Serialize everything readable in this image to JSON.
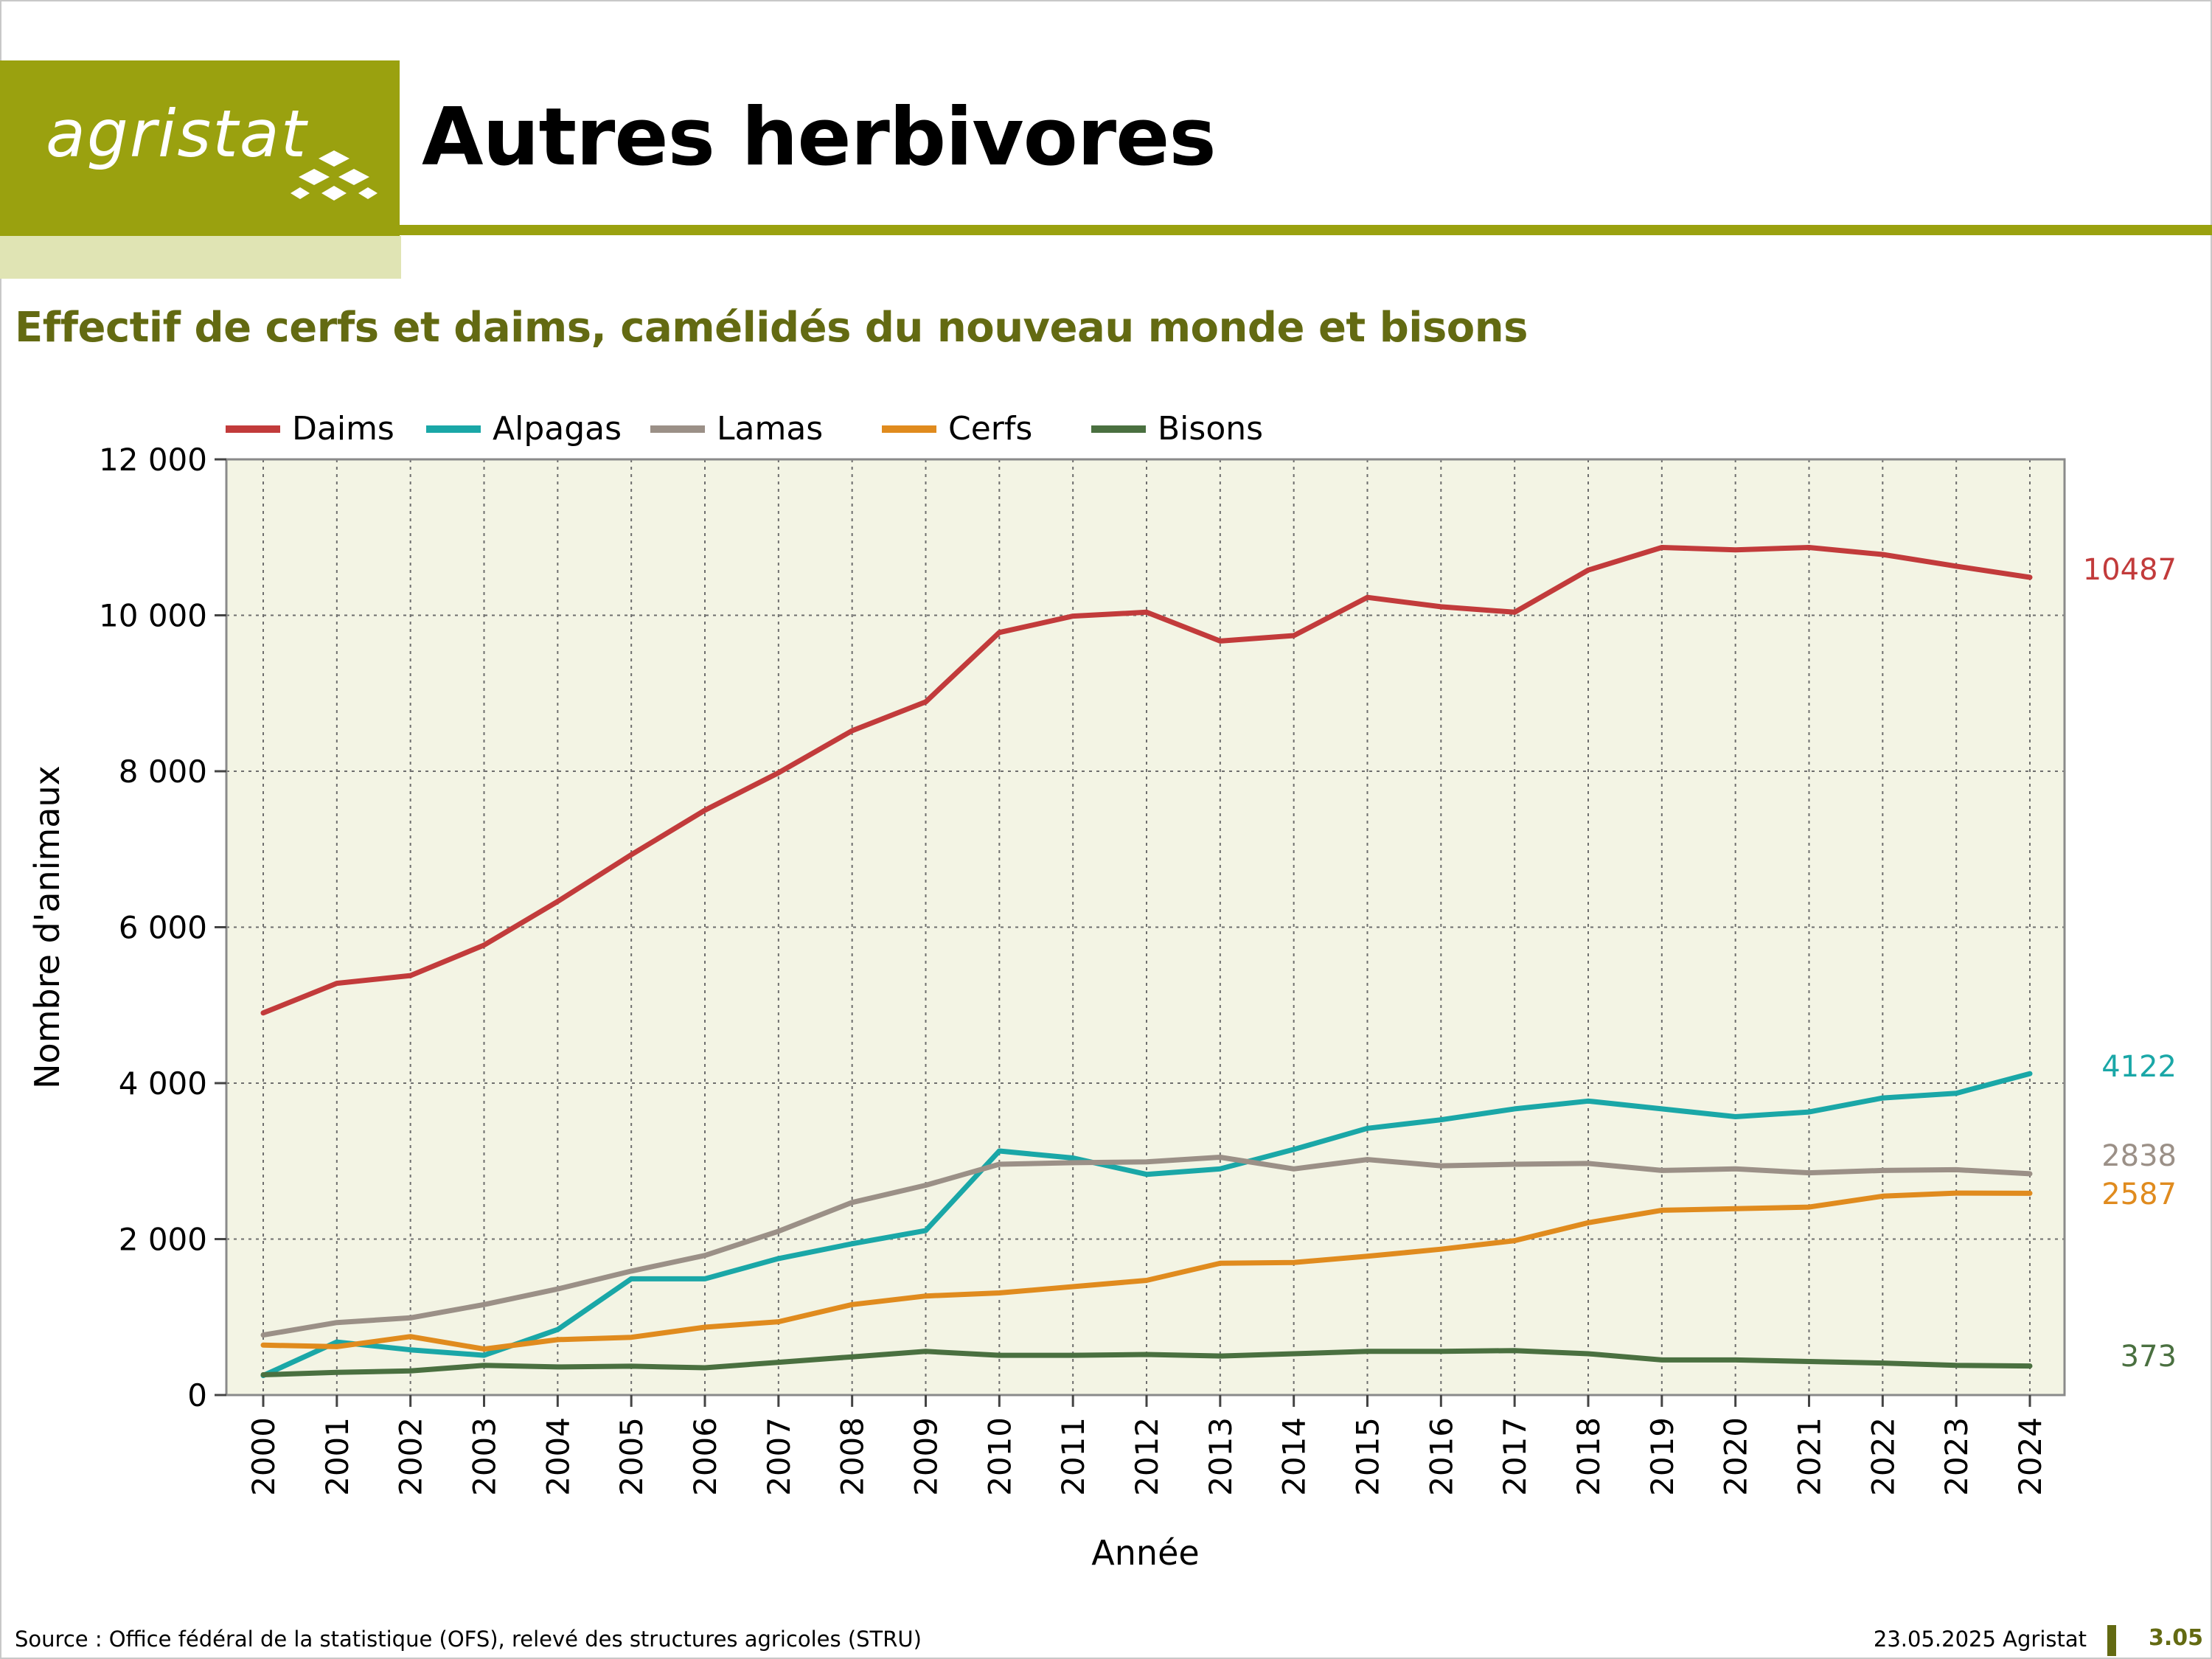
{
  "header": {
    "logo_text": "agristat",
    "title": "Autres herbivores"
  },
  "subtitle": "Effectif de cerfs et daims, camélidés du nouveau monde et bisons",
  "colors": {
    "brand": "#9aa10f",
    "brand_light": "#e0e4b4",
    "subtitle": "#636a12",
    "plot_bg": "#f3f4e4"
  },
  "chart_data": {
    "type": "line",
    "title": "",
    "xlabel": "Année",
    "ylabel": "Nombre d'animaux",
    "ylim": [
      0,
      12000
    ],
    "yticks": [
      0,
      2000,
      4000,
      6000,
      8000,
      10000,
      12000
    ],
    "ytick_labels": [
      "0",
      "2 000",
      "4 000",
      "6 000",
      "8 000",
      "10 000",
      "12 000"
    ],
    "grid": true,
    "legend": "top",
    "categories": [
      "2000",
      "2001",
      "2002",
      "2003",
      "2004",
      "2005",
      "2006",
      "2007",
      "2008",
      "2009",
      "2010",
      "2011",
      "2012",
      "2013",
      "2014",
      "2015",
      "2016",
      "2017",
      "2018",
      "2019",
      "2020",
      "2021",
      "2022",
      "2023",
      "2024"
    ],
    "series": [
      {
        "name": "Daims",
        "color": "#c23b3b",
        "end_label": "10487",
        "values": [
          4900,
          5280,
          5380,
          5770,
          6330,
          6930,
          7500,
          7980,
          8520,
          8890,
          9780,
          9990,
          10040,
          9670,
          9740,
          10230,
          10110,
          10040,
          10580,
          10870,
          10840,
          10870,
          10780,
          10630,
          10487
        ]
      },
      {
        "name": "Alpagas",
        "color": "#1aa7a7",
        "end_label": "4122",
        "values": [
          250,
          680,
          580,
          510,
          840,
          1490,
          1490,
          1750,
          1940,
          2110,
          3130,
          3040,
          2830,
          2900,
          3150,
          3420,
          3530,
          3670,
          3770,
          3670,
          3570,
          3630,
          3810,
          3870,
          4122
        ]
      },
      {
        "name": "Lamas",
        "color": "#9b9087",
        "end_label": "2838",
        "values": [
          770,
          930,
          990,
          1160,
          1360,
          1590,
          1790,
          2100,
          2470,
          2690,
          2960,
          2980,
          2990,
          3050,
          2900,
          3020,
          2940,
          2960,
          2970,
          2880,
          2900,
          2850,
          2880,
          2890,
          2838
        ]
      },
      {
        "name": "Cerfs",
        "color": "#e08b1e",
        "end_label": "2587",
        "values": [
          640,
          620,
          750,
          590,
          710,
          740,
          870,
          940,
          1160,
          1270,
          1310,
          1390,
          1470,
          1690,
          1700,
          1780,
          1870,
          1980,
          2210,
          2370,
          2390,
          2410,
          2550,
          2590,
          2587
        ]
      },
      {
        "name": "Bisons",
        "color": "#4a7040",
        "end_label": "373",
        "values": [
          260,
          290,
          310,
          380,
          360,
          370,
          350,
          420,
          490,
          560,
          510,
          510,
          520,
          500,
          530,
          560,
          560,
          570,
          530,
          450,
          450,
          430,
          410,
          380,
          373
        ]
      }
    ]
  },
  "footer": {
    "source": "Source : Office fédéral de la statistique (OFS), relevé des structures agricoles (STRU)",
    "date": "23.05.2025 Agristat",
    "page": "3.05"
  }
}
